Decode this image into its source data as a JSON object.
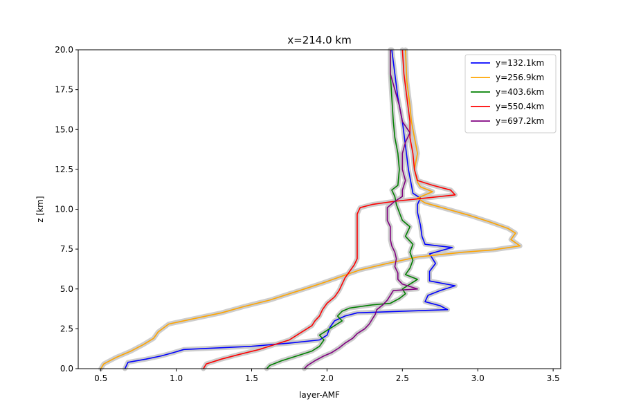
{
  "chart_data": {
    "type": "line",
    "title": "x=214.0 km",
    "xlabel": "layer-AMF",
    "ylabel": "z [km]",
    "xlim": [
      0.35,
      3.55
    ],
    "ylim": [
      0,
      20
    ],
    "xticks": [
      "0.5",
      "1.0",
      "1.5",
      "2.0",
      "2.5",
      "3.0",
      "3.5"
    ],
    "yticks": [
      "0.0",
      "2.5",
      "5.0",
      "7.5",
      "10.0",
      "12.5",
      "15.0",
      "17.5",
      "20.0"
    ],
    "grid": false,
    "legend_position": "top-right",
    "uncertainty_band_color": "#c8c8c8",
    "series": [
      {
        "name": "y=132.1km",
        "color": "#0000ff",
        "points": [
          [
            0.66,
            0
          ],
          [
            0.68,
            0.4
          ],
          [
            0.8,
            0.6
          ],
          [
            0.9,
            0.8
          ],
          [
            0.98,
            1.0
          ],
          [
            1.05,
            1.2
          ],
          [
            1.5,
            1.4
          ],
          [
            1.75,
            1.6
          ],
          [
            1.95,
            1.8
          ],
          [
            2.0,
            2.1
          ],
          [
            2.02,
            2.6
          ],
          [
            2.05,
            3.0
          ],
          [
            2.12,
            3.3
          ],
          [
            2.2,
            3.5
          ],
          [
            2.8,
            3.7
          ],
          [
            2.75,
            3.95
          ],
          [
            2.65,
            4.2
          ],
          [
            2.67,
            4.6
          ],
          [
            2.75,
            4.9
          ],
          [
            2.85,
            5.2
          ],
          [
            2.68,
            5.5
          ],
          [
            2.68,
            6.1
          ],
          [
            2.72,
            6.6
          ],
          [
            2.68,
            7.2
          ],
          [
            2.83,
            7.6
          ],
          [
            2.65,
            7.8
          ],
          [
            2.63,
            8.3
          ],
          [
            2.62,
            9.0
          ],
          [
            2.6,
            9.8
          ],
          [
            2.6,
            10.3
          ],
          [
            2.62,
            10.7
          ],
          [
            2.57,
            11.0
          ],
          [
            2.56,
            11.5
          ],
          [
            2.54,
            12.5
          ],
          [
            2.52,
            14.0
          ],
          [
            2.5,
            15.5
          ],
          [
            2.47,
            17.0
          ],
          [
            2.45,
            18.5
          ],
          [
            2.43,
            20.0
          ]
        ]
      },
      {
        "name": "y=256.9km",
        "color": "#ffa500",
        "points": [
          [
            0.5,
            0
          ],
          [
            0.52,
            0.3
          ],
          [
            0.6,
            0.7
          ],
          [
            0.7,
            1.1
          ],
          [
            0.78,
            1.5
          ],
          [
            0.85,
            1.9
          ],
          [
            0.88,
            2.3
          ],
          [
            0.95,
            2.8
          ],
          [
            1.15,
            3.2
          ],
          [
            1.3,
            3.5
          ],
          [
            1.45,
            3.9
          ],
          [
            1.62,
            4.3
          ],
          [
            1.75,
            4.7
          ],
          [
            1.85,
            5.0
          ],
          [
            1.98,
            5.4
          ],
          [
            2.1,
            5.8
          ],
          [
            2.22,
            6.2
          ],
          [
            2.4,
            6.6
          ],
          [
            2.6,
            7.0
          ],
          [
            2.9,
            7.3
          ],
          [
            3.1,
            7.45
          ],
          [
            3.28,
            7.7
          ],
          [
            3.22,
            8.1
          ],
          [
            3.25,
            8.5
          ],
          [
            3.2,
            8.8
          ],
          [
            3.08,
            9.2
          ],
          [
            2.95,
            9.6
          ],
          [
            2.8,
            10.0
          ],
          [
            2.65,
            10.4
          ],
          [
            2.6,
            10.7
          ],
          [
            2.7,
            11.1
          ],
          [
            2.62,
            11.4
          ],
          [
            2.6,
            11.7
          ],
          [
            2.58,
            12.5
          ],
          [
            2.6,
            13.5
          ],
          [
            2.58,
            14.5
          ],
          [
            2.56,
            15.5
          ],
          [
            2.55,
            16.5
          ],
          [
            2.53,
            18.0
          ],
          [
            2.52,
            20.0
          ]
        ]
      },
      {
        "name": "y=403.6km",
        "color": "#008000",
        "points": [
          [
            1.6,
            0
          ],
          [
            1.62,
            0.2
          ],
          [
            1.7,
            0.5
          ],
          [
            1.8,
            0.8
          ],
          [
            1.9,
            1.1
          ],
          [
            1.95,
            1.4
          ],
          [
            1.98,
            1.8
          ],
          [
            1.95,
            2.1
          ],
          [
            2.0,
            2.4
          ],
          [
            2.05,
            2.7
          ],
          [
            2.1,
            3.0
          ],
          [
            2.07,
            3.3
          ],
          [
            2.1,
            3.6
          ],
          [
            2.15,
            3.8
          ],
          [
            2.3,
            4.0
          ],
          [
            2.42,
            4.1
          ],
          [
            2.48,
            4.4
          ],
          [
            2.52,
            4.7
          ],
          [
            2.5,
            5.0
          ],
          [
            2.55,
            5.3
          ],
          [
            2.6,
            5.6
          ],
          [
            2.52,
            5.9
          ],
          [
            2.55,
            6.3
          ],
          [
            2.57,
            6.8
          ],
          [
            2.55,
            7.3
          ],
          [
            2.57,
            7.8
          ],
          [
            2.52,
            8.3
          ],
          [
            2.55,
            8.9
          ],
          [
            2.5,
            9.3
          ],
          [
            2.48,
            9.8
          ],
          [
            2.46,
            10.3
          ],
          [
            2.45,
            10.8
          ],
          [
            2.43,
            11.2
          ],
          [
            2.47,
            11.5
          ],
          [
            2.48,
            12.5
          ],
          [
            2.47,
            13.5
          ],
          [
            2.45,
            14.5
          ],
          [
            2.44,
            15.5
          ],
          [
            2.43,
            17.0
          ],
          [
            2.42,
            18.5
          ],
          [
            2.42,
            20.0
          ]
        ]
      },
      {
        "name": "y=550.4km",
        "color": "#ff0000",
        "points": [
          [
            1.18,
            0
          ],
          [
            1.2,
            0.3
          ],
          [
            1.3,
            0.6
          ],
          [
            1.42,
            0.9
          ],
          [
            1.55,
            1.2
          ],
          [
            1.65,
            1.5
          ],
          [
            1.75,
            1.8
          ],
          [
            1.8,
            2.1
          ],
          [
            1.85,
            2.4
          ],
          [
            1.9,
            2.7
          ],
          [
            1.92,
            3.0
          ],
          [
            1.95,
            3.3
          ],
          [
            1.97,
            3.7
          ],
          [
            2.0,
            4.1
          ],
          [
            2.05,
            4.5
          ],
          [
            2.08,
            4.9
          ],
          [
            2.1,
            5.3
          ],
          [
            2.12,
            5.7
          ],
          [
            2.15,
            6.1
          ],
          [
            2.18,
            6.5
          ],
          [
            2.2,
            6.9
          ],
          [
            2.2,
            7.3
          ],
          [
            2.2,
            7.7
          ],
          [
            2.2,
            8.1
          ],
          [
            2.2,
            8.5
          ],
          [
            2.2,
            8.9
          ],
          [
            2.2,
            9.3
          ],
          [
            2.2,
            9.7
          ],
          [
            2.22,
            10.1
          ],
          [
            2.3,
            10.3
          ],
          [
            2.45,
            10.5
          ],
          [
            2.65,
            10.7
          ],
          [
            2.85,
            10.9
          ],
          [
            2.82,
            11.2
          ],
          [
            2.7,
            11.5
          ],
          [
            2.6,
            11.8
          ],
          [
            2.58,
            12.5
          ],
          [
            2.57,
            13.5
          ],
          [
            2.55,
            14.5
          ],
          [
            2.55,
            15.5
          ],
          [
            2.53,
            17.0
          ],
          [
            2.51,
            18.5
          ],
          [
            2.5,
            20.0
          ]
        ]
      },
      {
        "name": "y=697.2km",
        "color": "#800080",
        "points": [
          [
            1.85,
            0
          ],
          [
            1.87,
            0.2
          ],
          [
            1.92,
            0.5
          ],
          [
            1.98,
            0.8
          ],
          [
            2.03,
            1.0
          ],
          [
            2.08,
            1.3
          ],
          [
            2.12,
            1.6
          ],
          [
            2.17,
            1.9
          ],
          [
            2.2,
            2.2
          ],
          [
            2.25,
            2.5
          ],
          [
            2.28,
            2.8
          ],
          [
            2.3,
            3.1
          ],
          [
            2.32,
            3.4
          ],
          [
            2.33,
            3.7
          ],
          [
            2.37,
            4.0
          ],
          [
            2.4,
            4.3
          ],
          [
            2.42,
            4.6
          ],
          [
            2.44,
            4.9
          ],
          [
            2.6,
            5.0
          ],
          [
            2.5,
            5.3
          ],
          [
            2.47,
            5.6
          ],
          [
            2.47,
            6.0
          ],
          [
            2.45,
            6.4
          ],
          [
            2.46,
            6.9
          ],
          [
            2.45,
            7.3
          ],
          [
            2.43,
            7.7
          ],
          [
            2.42,
            8.1
          ],
          [
            2.42,
            8.5
          ],
          [
            2.42,
            8.9
          ],
          [
            2.4,
            9.3
          ],
          [
            2.4,
            9.7
          ],
          [
            2.4,
            10.1
          ],
          [
            2.45,
            10.5
          ],
          [
            2.5,
            10.8
          ],
          [
            2.5,
            11.2
          ],
          [
            2.52,
            11.8
          ],
          [
            2.5,
            12.5
          ],
          [
            2.5,
            13.5
          ],
          [
            2.52,
            14.2
          ],
          [
            2.55,
            14.8
          ],
          [
            2.5,
            15.5
          ],
          [
            2.48,
            16.5
          ],
          [
            2.45,
            17.5
          ],
          [
            2.42,
            18.5
          ],
          [
            2.42,
            20.0
          ]
        ]
      }
    ]
  }
}
